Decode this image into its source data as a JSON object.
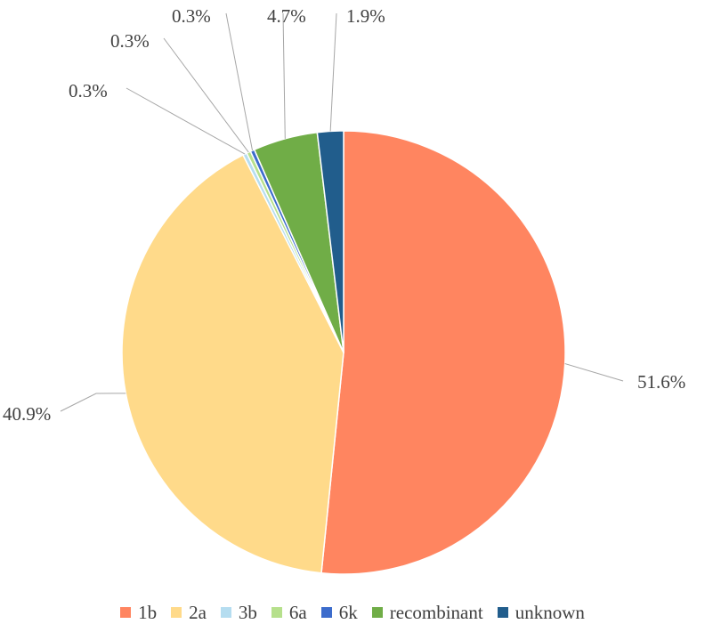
{
  "chart_data": {
    "type": "pie",
    "categories": [
      "1b",
      "2a",
      "3b",
      "6a",
      "6k",
      "recombinant",
      "unknown"
    ],
    "values": [
      51.6,
      40.9,
      0.3,
      0.3,
      0.3,
      4.7,
      1.9
    ],
    "labels": [
      "51.6%",
      "40.9%",
      "0.3%",
      "0.3%",
      "0.3%",
      "4.7%",
      "1.9%"
    ],
    "colors": [
      "#ff8560",
      "#ffda8a",
      "#b5ddf0",
      "#b6e08c",
      "#3c6ccc",
      "#70ad47",
      "#215d8c"
    ],
    "legend_position": "bottom",
    "start_angle": "12 o'clock, clockwise"
  }
}
